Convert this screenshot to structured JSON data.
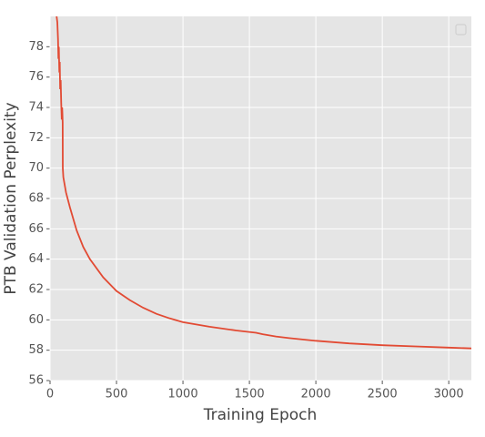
{
  "chart_data": {
    "type": "line",
    "x_label": "Training Epoch",
    "y_label": "PTB Validation Perplexity",
    "x": [
      48,
      55,
      60,
      63,
      66,
      70,
      73,
      76,
      80,
      84,
      88,
      91,
      93,
      95,
      96,
      100,
      120,
      150,
      200,
      250,
      300,
      400,
      500,
      600,
      700,
      800,
      900,
      1000,
      1200,
      1400,
      1550,
      1600,
      1700,
      1800,
      2000,
      2250,
      2500,
      2750,
      3000,
      3170
    ],
    "series": [
      {
        "color": "#e24a33",
        "values": [
          80.1,
          79.6,
          78.5,
          77.2,
          78.0,
          76.3,
          77.0,
          75.2,
          75.8,
          74.3,
          73.2,
          74.0,
          73.6,
          73.0,
          70.0,
          69.4,
          68.4,
          67.4,
          65.9,
          64.8,
          64.0,
          62.8,
          61.9,
          61.3,
          60.8,
          60.4,
          60.1,
          59.85,
          59.55,
          59.3,
          59.15,
          59.05,
          58.9,
          58.8,
          58.62,
          58.45,
          58.33,
          58.25,
          58.17,
          58.12
        ]
      }
    ],
    "xlim": [
      0,
      3170
    ],
    "ylim": [
      56,
      80
    ],
    "xticks": [
      0,
      500,
      1000,
      1500,
      2000,
      2500,
      3000
    ],
    "yticks": [
      56,
      58,
      60,
      62,
      64,
      66,
      68,
      70,
      72,
      74,
      76,
      78
    ],
    "grid": true,
    "legend": "upper right"
  }
}
